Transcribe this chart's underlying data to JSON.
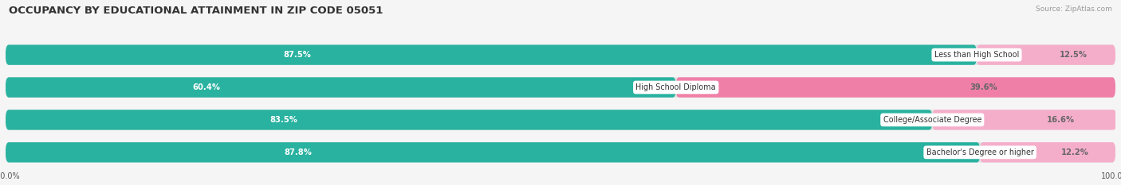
{
  "title": "OCCUPANCY BY EDUCATIONAL ATTAINMENT IN ZIP CODE 05051",
  "source": "Source: ZipAtlas.com",
  "categories": [
    "Less than High School",
    "High School Diploma",
    "College/Associate Degree",
    "Bachelor's Degree or higher"
  ],
  "owner_pct": [
    87.5,
    60.4,
    83.5,
    87.8
  ],
  "renter_pct": [
    12.5,
    39.6,
    16.6,
    12.2
  ],
  "owner_color": "#29B2A0",
  "renter_color": "#F07FA8",
  "renter_light_color": "#F5AECA",
  "owner_light_color": "#8DD8D0",
  "bg_color": "#F5F5F5",
  "track_color": "#E0E0E0",
  "title_fontsize": 9.5,
  "label_fontsize": 7.2,
  "tick_fontsize": 7.0,
  "legend_fontsize": 7.5,
  "bar_height": 0.62,
  "n_bars": 4
}
